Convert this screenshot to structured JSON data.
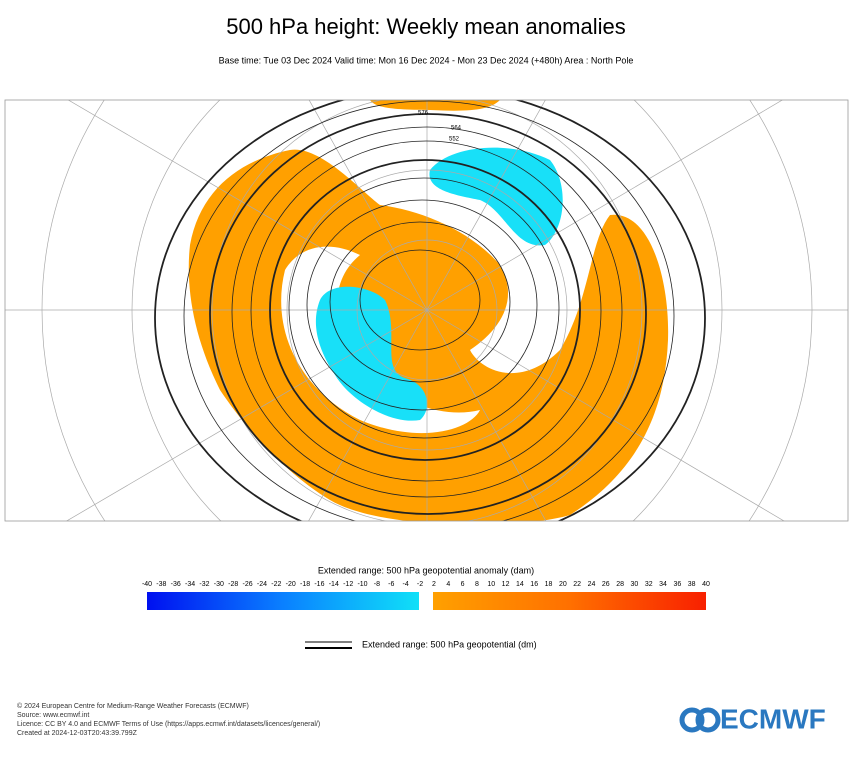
{
  "header": {
    "title": "500 hPa height: Weekly mean anomalies",
    "subtitle": "Base time: Tue 03 Dec 2024 Valid time: Mon 16 Dec 2024 - Mon 23 Dec 2024 (+480h) Area : North Pole"
  },
  "map": {
    "contour_labels": [
      "576",
      "564",
      "552"
    ]
  },
  "colorbar": {
    "title": "Extended range: 500 hPa geopotential anomaly (dam)",
    "negative_labels": [
      -40,
      -38,
      -36,
      -34,
      -32,
      -30,
      -28,
      -26,
      -24,
      -22,
      -20,
      -18,
      -16,
      -14,
      -12,
      -10,
      -8,
      -6,
      -4,
      -2
    ],
    "positive_labels": [
      2,
      4,
      6,
      8,
      10,
      12,
      14,
      16,
      18,
      20,
      22,
      24,
      26,
      28,
      30,
      32,
      34,
      36,
      38,
      40
    ]
  },
  "legend": {
    "label": "Extended range: 500 hPa geopotential (dm)"
  },
  "footer": {
    "lines": [
      "© 2024 European Centre for Medium-Range Weather Forecasts (ECMWF)",
      "Source: www.ecmwf.int",
      "Licence: CC BY 4.0 and ECMWF Terms of Use (https://apps.ecmwf.int/datasets/licences/general/)",
      "Created at 2024-12-03T20:43:39.799Z"
    ],
    "logo": "ECMWF"
  }
}
